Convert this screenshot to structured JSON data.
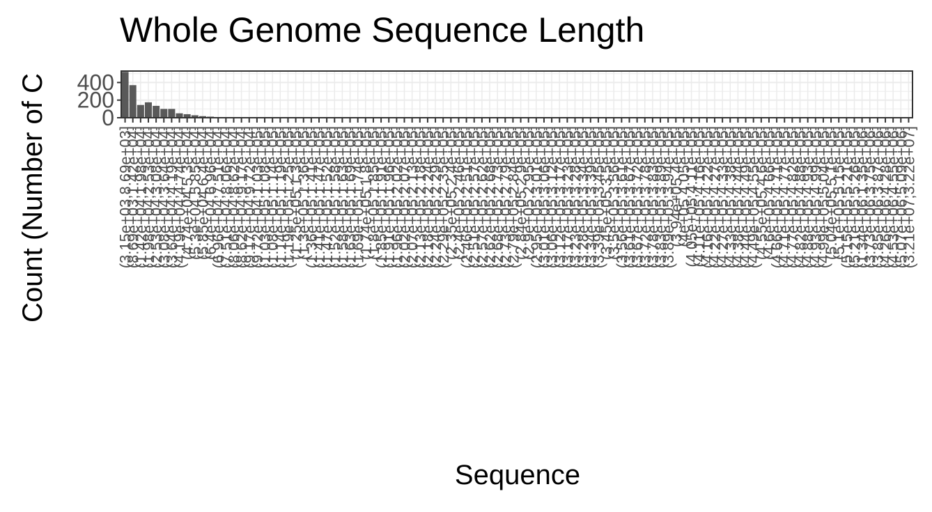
{
  "chart_data": {
    "type": "bar",
    "title": "Whole Genome Sequence Length",
    "xlabel": "Sequence",
    "ylabel": "Count (Number of C",
    "y_ticks": [
      "0",
      "200",
      "400"
    ],
    "ylim": [
      0,
      530
    ],
    "grid": true,
    "bar_color": "#595959",
    "panel_grid_color": "#ebebeb",
    "categories": [
      "(3.15e+03,8.69e+03]",
      "(8.69e+03,1.42e+04]",
      "(1.42e+04,1.98e+04]",
      "(1.98e+04,2.53e+04]",
      "(2.53e+04,3.08e+04]",
      "(3.08e+04,3.64e+04]",
      "(3.64e+04,4.19e+04]",
      "(4.19e+04,4.74e+04]",
      "(4.74e+04,5.3e+04]",
      "(5.3e+04,5.85e+04]",
      "(5.85e+04,6.4e+04]",
      "(6.4e+04,6.96e+04]",
      "(6.96e+04,7.51e+04]",
      "(7.51e+04,8.06e+04]",
      "(8.06e+04,8.62e+04]",
      "(8.62e+04,9.17e+04]",
      "(9.17e+04,9.72e+04]",
      "(9.72e+04,1.03e+05]",
      "(1.03e+05,1.08e+05]",
      "(1.08e+05,1.14e+05]",
      "(1.14e+05,1.19e+05]",
      "(1.19e+05,1.25e+05]",
      "(1.25e+05,1.3e+05]",
      "(1.3e+05,1.36e+05]",
      "(1.36e+05,1.41e+05]",
      "(1.41e+05,1.47e+05]",
      "(1.47e+05,1.52e+05]",
      "(1.52e+05,1.58e+05]",
      "(1.58e+05,1.63e+05]",
      "(1.63e+05,1.69e+05]",
      "(1.69e+05,1.74e+05]",
      "(1.74e+05,1.8e+05]",
      "(1.8e+05,1.85e+05]",
      "(1.85e+05,1.91e+05]",
      "(1.91e+05,1.96e+05]",
      "(1.96e+05,2.02e+05]",
      "(2.02e+05,2.07e+05]",
      "(2.07e+05,2.13e+05]",
      "(2.13e+05,2.18e+05]",
      "(2.18e+05,2.24e+05]",
      "(2.24e+05,2.29e+05]",
      "(2.29e+05,2.35e+05]",
      "(2.35e+05,2.4e+05]",
      "(2.4e+05,2.46e+05]",
      "(2.46e+05,2.51e+05]",
      "(2.51e+05,2.57e+05]",
      "(2.57e+05,2.62e+05]",
      "(2.62e+05,2.68e+05]",
      "(2.68e+05,2.73e+05]",
      "(2.73e+05,2.79e+05]",
      "(2.79e+05,2.84e+05]",
      "(2.84e+05,2.9e+05]",
      "(2.9e+05,2.95e+05]",
      "(2.95e+05,3.01e+05]",
      "(3.01e+05,3.06e+05]",
      "(3.06e+05,3.12e+05]",
      "(3.12e+05,3.17e+05]",
      "(3.17e+05,3.23e+05]",
      "(3.23e+05,3.28e+05]",
      "(3.28e+05,3.34e+05]",
      "(3.34e+05,3.39e+05]",
      "(3.39e+05,3.45e+05]",
      "(3.45e+05,3.5e+05]",
      "(3.5e+05,3.56e+05]",
      "(3.56e+05,3.61e+05]",
      "(3.61e+05,3.67e+05]",
      "(3.67e+05,3.72e+05]",
      "(3.72e+05,3.78e+05]",
      "(3.78e+05,3.83e+05]",
      "(3.83e+05,3.89e+05]",
      "(3.89e+05,3.94e+05]",
      "(3.94e+05,4e+05]",
      "(4e+05,4.05e+05]",
      "(4.05e+05,4.11e+05]",
      "(4.11e+05,4.16e+05]",
      "(4.16e+05,4.22e+05]",
      "(4.22e+05,4.27e+05]",
      "(4.27e+05,4.33e+05]",
      "(4.33e+05,4.38e+05]",
      "(4.38e+05,4.44e+05]",
      "(4.44e+05,4.49e+05]",
      "(4.49e+05,4.55e+05]",
      "(4.55e+05,4.6e+05]",
      "(4.6e+05,4.66e+05]",
      "(4.66e+05,4.71e+05]",
      "(4.71e+05,4.77e+05]",
      "(4.77e+05,4.82e+05]",
      "(4.82e+05,4.88e+05]",
      "(4.88e+05,4.93e+05]",
      "(4.93e+05,4.99e+05]",
      "(4.99e+05,5.04e+05]",
      "(5.04e+05,5.1e+05]",
      "(5.1e+05,5.15e+05]",
      "(5.15e+05,5.21e+05]",
      "(5.21e+05,5.26e+05]",
      "(1.34e+06,1.35e+06]",
      "(3.73e+06,3.75e+06]",
      "(3.85e+06,3.87e+06]",
      "(4.26e+06,4.28e+06]",
      "(4.53e+06,4.55e+06]",
      "(5.07e+06,5.09e+06]",
      "(3.21e+07,3.22e+07]"
    ],
    "values": [
      520,
      370,
      145,
      175,
      135,
      100,
      100,
      50,
      40,
      28,
      18,
      12,
      8,
      5,
      4,
      3,
      4,
      3,
      2,
      1,
      1,
      0,
      0,
      0,
      2,
      1,
      1,
      0,
      2,
      2,
      3,
      3,
      5,
      8,
      5,
      3,
      4,
      2,
      2,
      2,
      0,
      0,
      0,
      0,
      3,
      2,
      2,
      0,
      0,
      0,
      0,
      0,
      0,
      0,
      3,
      1,
      0,
      0,
      0,
      0,
      0,
      2,
      1,
      2,
      2,
      0,
      0,
      0,
      0,
      0,
      2,
      3,
      0,
      0,
      0,
      0,
      0,
      0,
      0,
      0,
      0,
      0,
      0,
      0,
      0,
      0,
      0,
      0,
      0,
      0,
      0,
      0,
      0,
      0,
      0,
      0,
      0,
      0,
      0,
      0,
      0,
      0
    ]
  }
}
